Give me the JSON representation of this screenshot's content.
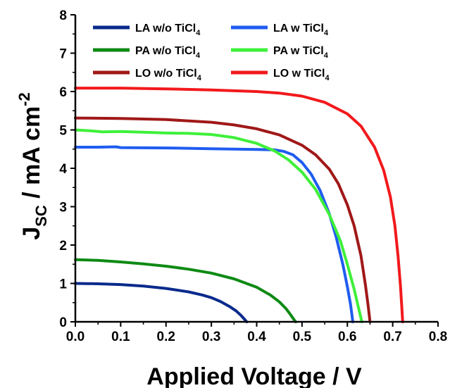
{
  "chart_data": {
    "type": "line",
    "title": "",
    "xlabel": "Applied Voltage / V",
    "ylabel": {
      "main": "J",
      "sub": "SC",
      "rest": " / mA cm",
      "sup": "-2"
    },
    "xlim": [
      0.0,
      0.8
    ],
    "ylim": [
      0,
      8
    ],
    "xticks": [
      "0.0",
      "0.1",
      "0.2",
      "0.3",
      "0.4",
      "0.5",
      "0.6",
      "0.7",
      "0.8"
    ],
    "yticks": [
      "0",
      "1",
      "2",
      "3",
      "4",
      "5",
      "6",
      "7",
      "8"
    ],
    "grid": false,
    "legend_position": "top-left",
    "series": [
      {
        "name": "LA w/o TiCl",
        "sub": "4",
        "color": "#0a2a8c",
        "points": [
          [
            0.0,
            1.0
          ],
          [
            0.05,
            0.99
          ],
          [
            0.1,
            0.97
          ],
          [
            0.15,
            0.93
          ],
          [
            0.2,
            0.87
          ],
          [
            0.25,
            0.78
          ],
          [
            0.28,
            0.7
          ],
          [
            0.3,
            0.63
          ],
          [
            0.32,
            0.53
          ],
          [
            0.34,
            0.4
          ],
          [
            0.355,
            0.28
          ],
          [
            0.365,
            0.17
          ],
          [
            0.372,
            0.08
          ],
          [
            0.378,
            0.0
          ]
        ]
      },
      {
        "name": "LA w TiCl",
        "sub": "4",
        "color": "#1f5cf0",
        "points": [
          [
            0.0,
            4.55
          ],
          [
            0.05,
            4.55
          ],
          [
            0.09,
            4.56
          ],
          [
            0.1,
            4.54
          ],
          [
            0.2,
            4.53
          ],
          [
            0.3,
            4.51
          ],
          [
            0.4,
            4.49
          ],
          [
            0.44,
            4.48
          ],
          [
            0.46,
            4.44
          ],
          [
            0.48,
            4.35
          ],
          [
            0.5,
            4.15
          ],
          [
            0.52,
            3.85
          ],
          [
            0.54,
            3.42
          ],
          [
            0.56,
            2.82
          ],
          [
            0.575,
            2.22
          ],
          [
            0.59,
            1.5
          ],
          [
            0.6,
            0.92
          ],
          [
            0.607,
            0.45
          ],
          [
            0.612,
            0.0
          ]
        ]
      },
      {
        "name": "PA w/o TiCl",
        "sub": "4",
        "color": "#0e8a14",
        "points": [
          [
            0.0,
            1.62
          ],
          [
            0.05,
            1.6
          ],
          [
            0.1,
            1.56
          ],
          [
            0.15,
            1.51
          ],
          [
            0.2,
            1.45
          ],
          [
            0.25,
            1.37
          ],
          [
            0.3,
            1.27
          ],
          [
            0.35,
            1.12
          ],
          [
            0.4,
            0.9
          ],
          [
            0.43,
            0.7
          ],
          [
            0.45,
            0.52
          ],
          [
            0.465,
            0.34
          ],
          [
            0.475,
            0.18
          ],
          [
            0.482,
            0.06
          ],
          [
            0.486,
            0.0
          ]
        ]
      },
      {
        "name": "PA w TiCl",
        "sub": "4",
        "color": "#3ef03a",
        "points": [
          [
            0.0,
            5.0
          ],
          [
            0.03,
            4.98
          ],
          [
            0.06,
            4.95
          ],
          [
            0.1,
            4.96
          ],
          [
            0.15,
            4.94
          ],
          [
            0.2,
            4.92
          ],
          [
            0.25,
            4.91
          ],
          [
            0.3,
            4.88
          ],
          [
            0.35,
            4.8
          ],
          [
            0.4,
            4.65
          ],
          [
            0.44,
            4.45
          ],
          [
            0.47,
            4.22
          ],
          [
            0.5,
            3.9
          ],
          [
            0.53,
            3.45
          ],
          [
            0.56,
            2.8
          ],
          [
            0.585,
            2.1
          ],
          [
            0.6,
            1.5
          ],
          [
            0.615,
            0.85
          ],
          [
            0.625,
            0.35
          ],
          [
            0.632,
            0.0
          ]
        ]
      },
      {
        "name": "LO w/o TiCl",
        "sub": "4",
        "color": "#a01818",
        "points": [
          [
            0.0,
            5.31
          ],
          [
            0.1,
            5.3
          ],
          [
            0.2,
            5.27
          ],
          [
            0.3,
            5.2
          ],
          [
            0.35,
            5.13
          ],
          [
            0.4,
            5.03
          ],
          [
            0.45,
            4.87
          ],
          [
            0.5,
            4.6
          ],
          [
            0.53,
            4.35
          ],
          [
            0.56,
            3.98
          ],
          [
            0.58,
            3.6
          ],
          [
            0.6,
            3.05
          ],
          [
            0.615,
            2.5
          ],
          [
            0.63,
            1.72
          ],
          [
            0.64,
            0.95
          ],
          [
            0.646,
            0.4
          ],
          [
            0.65,
            0.0
          ]
        ]
      },
      {
        "name": "LO w TiCl",
        "sub": "4",
        "color": "#f2191c",
        "points": [
          [
            0.0,
            6.09
          ],
          [
            0.1,
            6.09
          ],
          [
            0.2,
            6.07
          ],
          [
            0.3,
            6.04
          ],
          [
            0.4,
            6.0
          ],
          [
            0.45,
            5.96
          ],
          [
            0.5,
            5.88
          ],
          [
            0.55,
            5.72
          ],
          [
            0.6,
            5.42
          ],
          [
            0.63,
            5.1
          ],
          [
            0.66,
            4.55
          ],
          [
            0.68,
            3.95
          ],
          [
            0.695,
            3.25
          ],
          [
            0.705,
            2.5
          ],
          [
            0.712,
            1.7
          ],
          [
            0.717,
            0.95
          ],
          [
            0.72,
            0.4
          ],
          [
            0.722,
            0.0
          ]
        ]
      }
    ]
  }
}
